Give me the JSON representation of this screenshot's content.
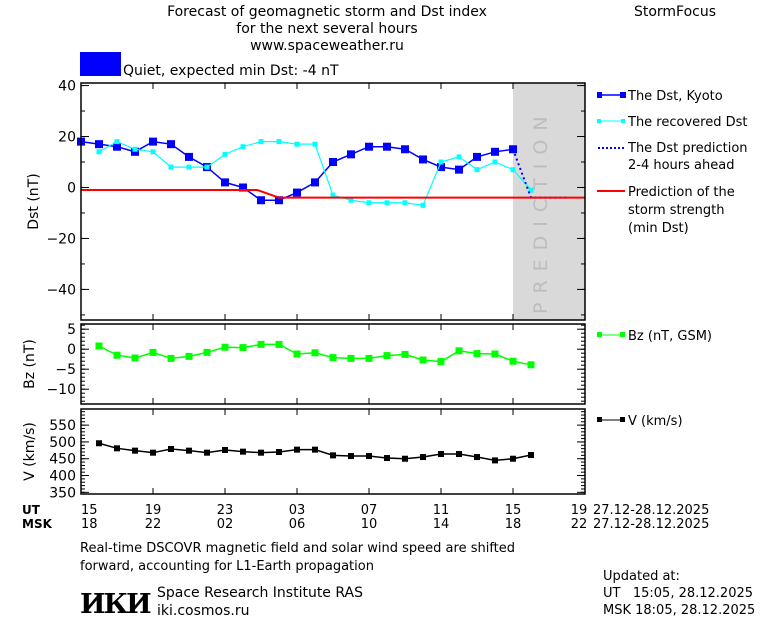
{
  "header": {
    "title_line1": "Forecast of geomagnetic storm and Dst index",
    "title_line2": "for the next several hours",
    "website": "www.spaceweather.ru",
    "brand": "StormFocus",
    "status_text": "Quiet, expected min Dst: -4 nT",
    "status_color": "#0000ff"
  },
  "chart_data": [
    {
      "type": "line",
      "ylabel": "Dst (nT)",
      "ylim": [
        -52,
        41
      ],
      "yticks": [
        40,
        20,
        0,
        -20,
        -40
      ],
      "x_unit": "hours UT from 15:00 27.12.2025",
      "xlim": [
        0,
        28
      ],
      "prediction_region": {
        "from": 24,
        "to": 28,
        "label": "PREDICTION",
        "color": "#d9d9d9"
      },
      "series": [
        {
          "name": "The Dst, Kyoto",
          "color": "#0000ff",
          "marker": "square",
          "x": [
            0,
            1,
            2,
            3,
            4,
            5,
            6,
            7,
            8,
            9,
            10,
            11,
            12,
            13,
            14,
            15,
            16,
            17,
            18,
            19,
            20,
            21,
            22,
            23,
            24
          ],
          "values": [
            18,
            17,
            16,
            14,
            18,
            17,
            12,
            8,
            2,
            0,
            -5,
            -5,
            -2,
            2,
            10,
            13,
            16,
            16,
            15,
            11,
            8,
            7,
            12,
            14,
            15
          ]
        },
        {
          "name": "The recovered Dst",
          "color": "#00ffff",
          "marker": "square",
          "x": [
            1,
            2,
            3,
            4,
            5,
            6,
            7,
            8,
            9,
            10,
            11,
            12,
            13,
            14,
            15,
            16,
            17,
            18,
            19,
            20,
            21,
            22,
            23,
            24,
            25
          ],
          "values": [
            14,
            18,
            15,
            14,
            8,
            8,
            8,
            13,
            16,
            18,
            18,
            17,
            17,
            -3,
            -5,
            -6,
            -6,
            -6,
            -7,
            10,
            12,
            7,
            10,
            7,
            -1
          ]
        },
        {
          "name": "The Dst prediction 2-4 hours ahead",
          "color": "#0000ff",
          "style": "dotted",
          "x": [
            24,
            25,
            27
          ],
          "values": [
            15,
            -4,
            -4
          ]
        },
        {
          "name": "Prediction of the storm strength (min Dst)",
          "color": "#ff0000",
          "x": [
            0,
            9.8,
            11,
            28
          ],
          "values": [
            -1,
            -1,
            -4,
            -4
          ]
        }
      ]
    },
    {
      "type": "line",
      "ylabel": "Bz (nT)",
      "ylim": [
        -13.7,
        6.3
      ],
      "yticks": [
        5,
        0,
        -5,
        -10
      ],
      "series": [
        {
          "name": "Bz (nT, GSM)",
          "color": "#00ff00",
          "marker": "square",
          "x": [
            1,
            2,
            3,
            4,
            5,
            6,
            7,
            8,
            9,
            10,
            11,
            12,
            13,
            14,
            15,
            16,
            17,
            18,
            19,
            20,
            21,
            22,
            23,
            24,
            25
          ],
          "values": [
            0.8,
            -1.5,
            -2.2,
            -0.8,
            -2.3,
            -1.8,
            -0.8,
            0.5,
            0.4,
            1.2,
            1.2,
            -1.2,
            -0.9,
            -2.1,
            -2.3,
            -2.3,
            -1.6,
            -1.3,
            -2.7,
            -3.1,
            -0.4,
            -1.1,
            -1.2,
            -3.0,
            -3.9
          ]
        }
      ]
    },
    {
      "type": "line",
      "ylabel": "V (km/s)",
      "ylim": [
        345,
        598
      ],
      "yticks": [
        550,
        500,
        450,
        400,
        350
      ],
      "series": [
        {
          "name": "V (km/s)",
          "color": "#000000",
          "marker": "square",
          "x": [
            1,
            2,
            3,
            4,
            5,
            6,
            7,
            8,
            9,
            10,
            11,
            12,
            13,
            14,
            15,
            16,
            17,
            18,
            19,
            20,
            21,
            22,
            23,
            24,
            25
          ],
          "values": [
            496,
            481,
            474,
            468,
            479,
            474,
            468,
            476,
            471,
            468,
            470,
            477,
            477,
            460,
            458,
            458,
            452,
            450,
            455,
            464,
            464,
            455,
            445,
            450,
            461
          ]
        }
      ]
    }
  ],
  "legend": {
    "dst_kyoto": "The Dst, Kyoto",
    "recovered": "The recovered Dst",
    "prediction_l1": "The Dst prediction",
    "prediction_l2": "2-4 hours ahead",
    "storm_l1": "Prediction of the",
    "storm_l2": "storm strength",
    "storm_l3": "(min Dst)",
    "bz": "Bz (nT, GSM)",
    "v": "V (km/s)"
  },
  "xaxis": {
    "ut_label": "UT",
    "msk_label": "MSK",
    "ut_ticks": [
      "15",
      "19",
      "23",
      "03",
      "07",
      "11",
      "15",
      "19"
    ],
    "msk_ticks": [
      "18",
      "22",
      "02",
      "06",
      "10",
      "14",
      "18",
      "22"
    ],
    "ut_range": "27.12-28.12.2025",
    "msk_range": "27.12-28.12.2025"
  },
  "footer": {
    "note_line1": "Real-time DSCOVR magnetic field and solar wind speed are shifted",
    "note_line2": "forward, accounting for L1-Earth propagation",
    "logo_text": "ИКИ",
    "institute": "Space Research Institute RAS",
    "institute_site": "iki.cosmos.ru",
    "updated_label": "Updated at:",
    "updated_ut": "UT   15:05, 28.12.2025",
    "updated_msk": "MSK 18:05, 28.12.2025"
  }
}
